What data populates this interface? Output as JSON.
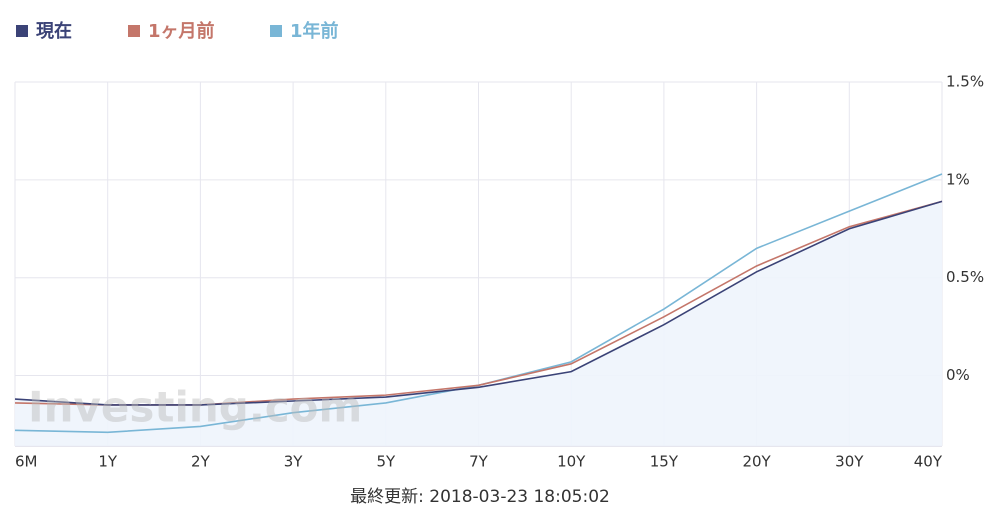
{
  "chart_data": {
    "type": "line",
    "categories": [
      "6M",
      "1Y",
      "2Y",
      "3Y",
      "5Y",
      "7Y",
      "10Y",
      "15Y",
      "20Y",
      "30Y",
      "40Y"
    ],
    "series": [
      {
        "name": "現在",
        "color": "#3b4377",
        "values": [
          -0.12,
          -0.15,
          -0.15,
          -0.13,
          -0.11,
          -0.06,
          0.02,
          0.26,
          0.53,
          0.75,
          0.89
        ]
      },
      {
        "name": "1ヶ月前",
        "color": "#c4766a",
        "values": [
          -0.14,
          -0.15,
          -0.15,
          -0.12,
          -0.1,
          -0.05,
          0.06,
          0.3,
          0.56,
          0.76,
          0.89
        ]
      },
      {
        "name": "1年前",
        "color": "#79b6d6",
        "values": [
          -0.28,
          -0.29,
          -0.26,
          -0.19,
          -0.14,
          -0.05,
          0.07,
          0.34,
          0.65,
          0.84,
          1.03
        ]
      }
    ],
    "ylim": [
      -0.36,
      1.5
    ],
    "yticks": [
      {
        "value": 0,
        "label": "0%"
      },
      {
        "value": 0.5,
        "label": "0.5%"
      },
      {
        "value": 1,
        "label": "1%"
      },
      {
        "value": 1.5,
        "label": "1.5%"
      }
    ],
    "grid": true,
    "area_under_first_series": true,
    "watermark": "Investing.com",
    "footer": "最終更新: 2018-03-23 18:05:02"
  }
}
